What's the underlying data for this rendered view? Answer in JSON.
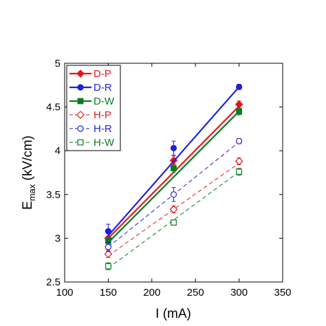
{
  "chart_data": {
    "type": "scatter",
    "title": "",
    "xlabel": "I (mA)",
    "ylabel_main": "E",
    "ylabel_sub": "max",
    "ylabel_unit": " (kV/cm)",
    "xlim": [
      100,
      350
    ],
    "ylim": [
      2.5,
      5
    ],
    "x_ticks": [
      "100",
      "150",
      "200",
      "250",
      "300",
      "350"
    ],
    "y_ticks": [
      "2.5",
      "3",
      "3.5",
      "4",
      "4.5",
      "5"
    ],
    "x_tick_values": [
      100,
      150,
      200,
      250,
      300,
      350
    ],
    "y_tick_values": [
      2.5,
      3,
      3.5,
      4,
      4.5,
      5
    ],
    "legend_position": "top-left",
    "series": [
      {
        "name": "D-P",
        "color": "#e8141b",
        "marker": "diamond",
        "filled": true,
        "line_style": "solid",
        "x": [
          150,
          225,
          300
        ],
        "y": [
          3.0,
          3.89,
          4.53
        ],
        "err": [
          0.05,
          0.05,
          0.04
        ],
        "fit": [
          [
            150,
            3.0
          ],
          [
            300,
            4.51
          ]
        ]
      },
      {
        "name": "D-R",
        "color": "#1f1fe0",
        "marker": "circle",
        "filled": true,
        "line_style": "solid",
        "x": [
          150,
          225,
          300
        ],
        "y": [
          3.08,
          4.03,
          4.73
        ],
        "err": [
          0.08,
          0.08,
          0.03
        ],
        "fit": [
          [
            150,
            3.03
          ],
          [
            300,
            4.73
          ]
        ]
      },
      {
        "name": "D-W",
        "color": "#0b7a1f",
        "marker": "square",
        "filled": true,
        "line_style": "solid",
        "x": [
          150,
          225,
          300
        ],
        "y": [
          2.97,
          3.8,
          4.45
        ],
        "err": [
          0.04,
          0.05,
          0.04
        ],
        "fit": [
          [
            150,
            2.95
          ],
          [
            300,
            4.45
          ]
        ]
      },
      {
        "name": "H-P",
        "color": "#e8141b",
        "marker": "diamond",
        "filled": false,
        "line_style": "dashed",
        "x": [
          150,
          225,
          300
        ],
        "y": [
          2.82,
          3.33,
          3.88
        ],
        "err": [
          0.04,
          0.04,
          0.04
        ],
        "fit": [
          [
            150,
            2.8
          ],
          [
            300,
            3.86
          ]
        ]
      },
      {
        "name": "H-R",
        "color": "#1f1fe0",
        "marker": "circle",
        "filled": false,
        "line_style": "dashed",
        "x": [
          150,
          225,
          300
        ],
        "y": [
          2.9,
          3.5,
          4.11
        ],
        "err": [
          0.05,
          0.08,
          0.03
        ],
        "fit": [
          [
            150,
            2.9
          ],
          [
            300,
            4.1
          ]
        ]
      },
      {
        "name": "H-W",
        "color": "#0b7a1f",
        "marker": "square",
        "filled": false,
        "line_style": "dashed",
        "x": [
          150,
          225,
          300
        ],
        "y": [
          2.68,
          3.18,
          3.76
        ],
        "err": [
          0.04,
          0.03,
          0.04
        ],
        "fit": [
          [
            150,
            2.66
          ],
          [
            300,
            3.76
          ]
        ]
      }
    ]
  }
}
